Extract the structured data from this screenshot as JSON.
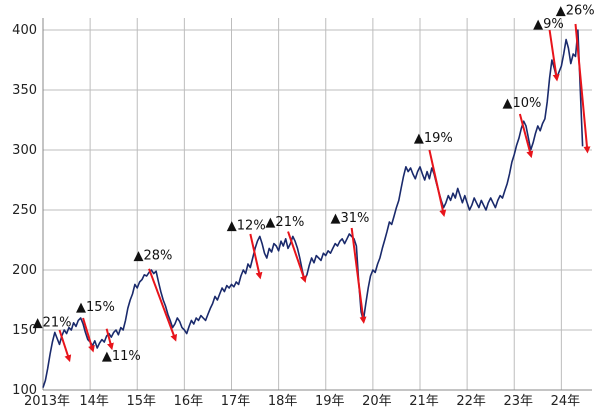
{
  "chart_data": {
    "type": "line",
    "ylim": [
      100,
      410
    ],
    "y_ticks": [
      100,
      150,
      200,
      250,
      300,
      350,
      400
    ],
    "x_range": [
      2013.0,
      2024.65
    ],
    "x_ticks": [
      {
        "x": 2013.0,
        "label": "2013年"
      },
      {
        "x": 2014.0,
        "label": "14年"
      },
      {
        "x": 2015.0,
        "label": "15年"
      },
      {
        "x": 2016.0,
        "label": "16年"
      },
      {
        "x": 2017.0,
        "label": "17年"
      },
      {
        "x": 2018.0,
        "label": "18年"
      },
      {
        "x": 2019.0,
        "label": "19年"
      },
      {
        "x": 2020.0,
        "label": "20年"
      },
      {
        "x": 2021.0,
        "label": "21年"
      },
      {
        "x": 2022.0,
        "label": "22年"
      },
      {
        "x": 2023.0,
        "label": "23年"
      },
      {
        "x": 2024.0,
        "label": "24年"
      }
    ],
    "grid": true,
    "line_color": "#1a2a6c",
    "arrow_color": "#e8141b",
    "series": [
      {
        "points": [
          [
            2013.0,
            102
          ],
          [
            2013.05,
            108
          ],
          [
            2013.1,
            118
          ],
          [
            2013.15,
            130
          ],
          [
            2013.2,
            140
          ],
          [
            2013.25,
            148
          ],
          [
            2013.3,
            143
          ],
          [
            2013.35,
            138
          ],
          [
            2013.4,
            145
          ],
          [
            2013.45,
            150
          ],
          [
            2013.5,
            147
          ],
          [
            2013.55,
            152
          ],
          [
            2013.6,
            150
          ],
          [
            2013.65,
            156
          ],
          [
            2013.7,
            153
          ],
          [
            2013.75,
            158
          ],
          [
            2013.8,
            160
          ],
          [
            2013.85,
            155
          ],
          [
            2013.9,
            148
          ],
          [
            2013.95,
            142
          ],
          [
            2014.0,
            140
          ],
          [
            2014.05,
            137
          ],
          [
            2014.1,
            141
          ],
          [
            2014.15,
            135
          ],
          [
            2014.2,
            139
          ],
          [
            2014.25,
            142
          ],
          [
            2014.3,
            140
          ],
          [
            2014.35,
            145
          ],
          [
            2014.4,
            147
          ],
          [
            2014.45,
            144
          ],
          [
            2014.5,
            148
          ],
          [
            2014.55,
            150
          ],
          [
            2014.6,
            146
          ],
          [
            2014.65,
            152
          ],
          [
            2014.7,
            150
          ],
          [
            2014.75,
            158
          ],
          [
            2014.8,
            168
          ],
          [
            2014.85,
            175
          ],
          [
            2014.9,
            180
          ],
          [
            2014.95,
            188
          ],
          [
            2015.0,
            185
          ],
          [
            2015.05,
            190
          ],
          [
            2015.1,
            192
          ],
          [
            2015.15,
            196
          ],
          [
            2015.2,
            195
          ],
          [
            2015.25,
            198
          ],
          [
            2015.3,
            200
          ],
          [
            2015.35,
            197
          ],
          [
            2015.4,
            199
          ],
          [
            2015.45,
            190
          ],
          [
            2015.5,
            182
          ],
          [
            2015.55,
            175
          ],
          [
            2015.6,
            170
          ],
          [
            2015.65,
            163
          ],
          [
            2015.7,
            158
          ],
          [
            2015.75,
            152
          ],
          [
            2015.8,
            155
          ],
          [
            2015.85,
            160
          ],
          [
            2015.9,
            157
          ],
          [
            2015.95,
            152
          ],
          [
            2016.0,
            150
          ],
          [
            2016.05,
            147
          ],
          [
            2016.1,
            153
          ],
          [
            2016.15,
            158
          ],
          [
            2016.2,
            155
          ],
          [
            2016.25,
            160
          ],
          [
            2016.3,
            158
          ],
          [
            2016.35,
            162
          ],
          [
            2016.4,
            160
          ],
          [
            2016.45,
            158
          ],
          [
            2016.5,
            163
          ],
          [
            2016.55,
            168
          ],
          [
            2016.6,
            172
          ],
          [
            2016.65,
            178
          ],
          [
            2016.7,
            175
          ],
          [
            2016.75,
            180
          ],
          [
            2016.8,
            185
          ],
          [
            2016.85,
            182
          ],
          [
            2016.9,
            187
          ],
          [
            2016.95,
            185
          ],
          [
            2017.0,
            188
          ],
          [
            2017.05,
            186
          ],
          [
            2017.1,
            190
          ],
          [
            2017.15,
            188
          ],
          [
            2017.2,
            195
          ],
          [
            2017.25,
            200
          ],
          [
            2017.3,
            197
          ],
          [
            2017.35,
            205
          ],
          [
            2017.4,
            202
          ],
          [
            2017.45,
            210
          ],
          [
            2017.5,
            218
          ],
          [
            2017.55,
            224
          ],
          [
            2017.6,
            228
          ],
          [
            2017.65,
            222
          ],
          [
            2017.7,
            214
          ],
          [
            2017.75,
            210
          ],
          [
            2017.8,
            218
          ],
          [
            2017.85,
            215
          ],
          [
            2017.9,
            222
          ],
          [
            2017.95,
            220
          ],
          [
            2018.0,
            216
          ],
          [
            2018.05,
            224
          ],
          [
            2018.1,
            220
          ],
          [
            2018.15,
            226
          ],
          [
            2018.2,
            218
          ],
          [
            2018.25,
            222
          ],
          [
            2018.3,
            228
          ],
          [
            2018.35,
            224
          ],
          [
            2018.4,
            218
          ],
          [
            2018.45,
            210
          ],
          [
            2018.5,
            200
          ],
          [
            2018.55,
            192
          ],
          [
            2018.6,
            196
          ],
          [
            2018.65,
            204
          ],
          [
            2018.7,
            210
          ],
          [
            2018.75,
            206
          ],
          [
            2018.8,
            212
          ],
          [
            2018.85,
            210
          ],
          [
            2018.9,
            208
          ],
          [
            2018.95,
            214
          ],
          [
            2019.0,
            212
          ],
          [
            2019.05,
            216
          ],
          [
            2019.1,
            214
          ],
          [
            2019.15,
            218
          ],
          [
            2019.2,
            222
          ],
          [
            2019.25,
            220
          ],
          [
            2019.3,
            224
          ],
          [
            2019.35,
            226
          ],
          [
            2019.4,
            222
          ],
          [
            2019.45,
            226
          ],
          [
            2019.5,
            230
          ],
          [
            2019.55,
            228
          ],
          [
            2019.6,
            226
          ],
          [
            2019.65,
            220
          ],
          [
            2019.7,
            190
          ],
          [
            2019.75,
            165
          ],
          [
            2019.8,
            158
          ],
          [
            2019.85,
            172
          ],
          [
            2019.9,
            185
          ],
          [
            2019.95,
            195
          ],
          [
            2020.0,
            200
          ],
          [
            2020.05,
            198
          ],
          [
            2020.1,
            205
          ],
          [
            2020.15,
            210
          ],
          [
            2020.2,
            218
          ],
          [
            2020.25,
            225
          ],
          [
            2020.3,
            232
          ],
          [
            2020.35,
            240
          ],
          [
            2020.4,
            238
          ],
          [
            2020.45,
            245
          ],
          [
            2020.5,
            252
          ],
          [
            2020.55,
            258
          ],
          [
            2020.6,
            268
          ],
          [
            2020.65,
            278
          ],
          [
            2020.7,
            286
          ],
          [
            2020.75,
            282
          ],
          [
            2020.8,
            285
          ],
          [
            2020.85,
            280
          ],
          [
            2020.9,
            276
          ],
          [
            2020.95,
            282
          ],
          [
            2021.0,
            286
          ],
          [
            2021.05,
            280
          ],
          [
            2021.1,
            275
          ],
          [
            2021.15,
            282
          ],
          [
            2021.2,
            276
          ],
          [
            2021.25,
            285
          ],
          [
            2021.3,
            280
          ],
          [
            2021.35,
            272
          ],
          [
            2021.4,
            265
          ],
          [
            2021.45,
            258
          ],
          [
            2021.5,
            252
          ],
          [
            2021.55,
            256
          ],
          [
            2021.6,
            262
          ],
          [
            2021.65,
            258
          ],
          [
            2021.7,
            264
          ],
          [
            2021.75,
            260
          ],
          [
            2021.8,
            268
          ],
          [
            2021.85,
            262
          ],
          [
            2021.9,
            256
          ],
          [
            2021.95,
            262
          ],
          [
            2022.0,
            256
          ],
          [
            2022.05,
            250
          ],
          [
            2022.1,
            254
          ],
          [
            2022.15,
            260
          ],
          [
            2022.2,
            256
          ],
          [
            2022.25,
            252
          ],
          [
            2022.3,
            258
          ],
          [
            2022.35,
            254
          ],
          [
            2022.4,
            250
          ],
          [
            2022.45,
            256
          ],
          [
            2022.5,
            260
          ],
          [
            2022.55,
            256
          ],
          [
            2022.6,
            252
          ],
          [
            2022.65,
            258
          ],
          [
            2022.7,
            262
          ],
          [
            2022.75,
            260
          ],
          [
            2022.8,
            266
          ],
          [
            2022.85,
            272
          ],
          [
            2022.9,
            280
          ],
          [
            2022.95,
            290
          ],
          [
            2023.0,
            296
          ],
          [
            2023.05,
            304
          ],
          [
            2023.1,
            310
          ],
          [
            2023.15,
            318
          ],
          [
            2023.2,
            324
          ],
          [
            2023.25,
            320
          ],
          [
            2023.3,
            310
          ],
          [
            2023.35,
            300
          ],
          [
            2023.4,
            306
          ],
          [
            2023.45,
            314
          ],
          [
            2023.5,
            320
          ],
          [
            2023.55,
            316
          ],
          [
            2023.6,
            322
          ],
          [
            2023.65,
            326
          ],
          [
            2023.7,
            340
          ],
          [
            2023.75,
            360
          ],
          [
            2023.8,
            375
          ],
          [
            2023.85,
            368
          ],
          [
            2023.9,
            360
          ],
          [
            2023.95,
            365
          ],
          [
            2024.0,
            370
          ],
          [
            2024.05,
            380
          ],
          [
            2024.1,
            392
          ],
          [
            2024.15,
            385
          ],
          [
            2024.2,
            372
          ],
          [
            2024.25,
            380
          ],
          [
            2024.3,
            378
          ],
          [
            2024.35,
            400
          ],
          [
            2024.4,
            352
          ],
          [
            2024.45,
            303
          ]
        ]
      }
    ],
    "annotations": [
      {
        "text": "▲21%",
        "anchor_x": 2012.78,
        "anchor_y": 157,
        "from": [
          2013.35,
          150
        ],
        "to": [
          2013.55,
          126
        ]
      },
      {
        "text": "▲15%",
        "anchor_x": 2013.7,
        "anchor_y": 170,
        "from": [
          2013.85,
          160
        ],
        "to": [
          2014.05,
          134
        ]
      },
      {
        "text": "▲11%",
        "anchor_x": 2014.25,
        "anchor_y": 129,
        "from": [
          2014.35,
          151
        ],
        "to": [
          2014.45,
          136
        ]
      },
      {
        "text": "▲28%",
        "anchor_x": 2014.92,
        "anchor_y": 213,
        "from": [
          2015.25,
          201
        ],
        "to": [
          2015.8,
          143
        ]
      },
      {
        "text": "▲12%",
        "anchor_x": 2016.9,
        "anchor_y": 238,
        "from": [
          2017.4,
          230
        ],
        "to": [
          2017.6,
          195
        ]
      },
      {
        "text": "▲21%",
        "anchor_x": 2017.72,
        "anchor_y": 241,
        "from": [
          2018.2,
          232
        ],
        "to": [
          2018.55,
          192
        ]
      },
      {
        "text": "▲31%",
        "anchor_x": 2019.1,
        "anchor_y": 244,
        "from": [
          2019.55,
          235
        ],
        "to": [
          2019.8,
          158
        ]
      },
      {
        "text": "▲19%",
        "anchor_x": 2020.87,
        "anchor_y": 311,
        "from": [
          2021.2,
          300
        ],
        "to": [
          2021.5,
          247
        ]
      },
      {
        "text": "▲10%",
        "anchor_x": 2022.75,
        "anchor_y": 340,
        "from": [
          2023.12,
          330
        ],
        "to": [
          2023.35,
          296
        ]
      },
      {
        "text": "▲9%",
        "anchor_x": 2023.4,
        "anchor_y": 406,
        "from": [
          2023.75,
          400
        ],
        "to": [
          2023.9,
          360
        ]
      },
      {
        "text": "▲26%",
        "anchor_x": 2023.88,
        "anchor_y": 417,
        "from": [
          2024.3,
          405
        ],
        "to": [
          2024.55,
          300
        ]
      }
    ]
  }
}
